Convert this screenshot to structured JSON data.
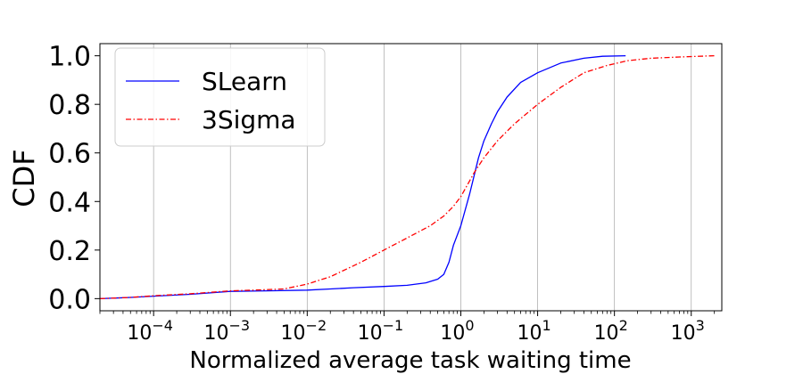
{
  "chart_data": {
    "type": "line",
    "xscale": "log",
    "xlabel": "Normalized average task waiting time",
    "ylabel": "CDF",
    "xlim": [
      2e-05,
      2500
    ],
    "ylim": [
      -0.05,
      1.05
    ],
    "grid": "vertical",
    "legend_position": "upper-left",
    "x_ticks": [
      {
        "value": 0.0001,
        "base": "10",
        "exp": "−4"
      },
      {
        "value": 0.001,
        "base": "10",
        "exp": "−3"
      },
      {
        "value": 0.01,
        "base": "10",
        "exp": "−2"
      },
      {
        "value": 0.1,
        "base": "10",
        "exp": "−1"
      },
      {
        "value": 1,
        "base": "10",
        "exp": "0"
      },
      {
        "value": 10,
        "base": "10",
        "exp": "1"
      },
      {
        "value": 100,
        "base": "10",
        "exp": "2"
      },
      {
        "value": 1000,
        "base": "10",
        "exp": "3"
      }
    ],
    "y_ticks": [
      {
        "value": 0.0,
        "label": "0.0"
      },
      {
        "value": 0.2,
        "label": "0.2"
      },
      {
        "value": 0.4,
        "label": "0.4"
      },
      {
        "value": 0.6,
        "label": "0.6"
      },
      {
        "value": 0.8,
        "label": "0.8"
      },
      {
        "value": 1.0,
        "label": "1.0"
      }
    ],
    "series": [
      {
        "name": "SLearn",
        "color": "#0000ff",
        "dash": "solid",
        "points": [
          [
            2e-05,
            0.0
          ],
          [
            5e-05,
            0.005
          ],
          [
            0.0001,
            0.01
          ],
          [
            0.0003,
            0.018
          ],
          [
            0.001,
            0.03
          ],
          [
            0.003,
            0.032
          ],
          [
            0.01,
            0.035
          ],
          [
            0.02,
            0.04
          ],
          [
            0.04,
            0.045
          ],
          [
            0.1,
            0.05
          ],
          [
            0.2,
            0.055
          ],
          [
            0.35,
            0.065
          ],
          [
            0.5,
            0.08
          ],
          [
            0.6,
            0.1
          ],
          [
            0.7,
            0.15
          ],
          [
            0.8,
            0.22
          ],
          [
            1.0,
            0.3
          ],
          [
            1.3,
            0.43
          ],
          [
            1.7,
            0.58
          ],
          [
            2.0,
            0.65
          ],
          [
            2.5,
            0.72
          ],
          [
            3.0,
            0.77
          ],
          [
            4.0,
            0.83
          ],
          [
            6.0,
            0.89
          ],
          [
            10,
            0.93
          ],
          [
            20,
            0.97
          ],
          [
            40,
            0.99
          ],
          [
            70,
            0.998
          ],
          [
            140,
            1.0
          ]
        ]
      },
      {
        "name": "3Sigma",
        "color": "#ff0000",
        "dash": "dashdot",
        "points": [
          [
            2e-05,
            0.0
          ],
          [
            5e-05,
            0.005
          ],
          [
            0.0001,
            0.012
          ],
          [
            0.0003,
            0.02
          ],
          [
            0.001,
            0.032
          ],
          [
            0.002,
            0.035
          ],
          [
            0.005,
            0.04
          ],
          [
            0.01,
            0.06
          ],
          [
            0.02,
            0.09
          ],
          [
            0.05,
            0.15
          ],
          [
            0.1,
            0.2
          ],
          [
            0.2,
            0.25
          ],
          [
            0.4,
            0.3
          ],
          [
            0.6,
            0.34
          ],
          [
            0.8,
            0.38
          ],
          [
            1.0,
            0.42
          ],
          [
            1.5,
            0.52
          ],
          [
            2.0,
            0.58
          ],
          [
            3.0,
            0.65
          ],
          [
            5.0,
            0.72
          ],
          [
            10,
            0.8
          ],
          [
            20,
            0.87
          ],
          [
            40,
            0.93
          ],
          [
            80,
            0.96
          ],
          [
            150,
            0.98
          ],
          [
            300,
            0.99
          ],
          [
            700,
            0.995
          ],
          [
            2000,
            1.0
          ]
        ]
      }
    ]
  }
}
